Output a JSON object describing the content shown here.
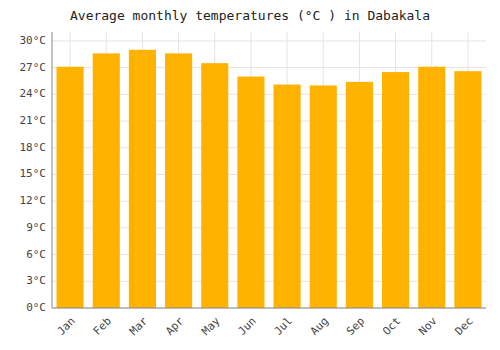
{
  "chart_data": {
    "type": "bar",
    "title": "Average monthly temperatures (°C ) in Dabakala",
    "categories": [
      "Jan",
      "Feb",
      "Mar",
      "Apr",
      "May",
      "Jun",
      "Jul",
      "Aug",
      "Sep",
      "Oct",
      "Nov",
      "Dec"
    ],
    "values": [
      27.1,
      28.6,
      29.0,
      28.6,
      27.5,
      26.0,
      25.1,
      25.0,
      25.4,
      26.5,
      27.1,
      26.6
    ],
    "color": "#FFB300",
    "ylim": [
      0,
      31
    ],
    "yticks": [
      {
        "value": 0,
        "label": "0°C"
      },
      {
        "value": 3,
        "label": "3°C"
      },
      {
        "value": 6,
        "label": "6°C"
      },
      {
        "value": 9,
        "label": "9°C"
      },
      {
        "value": 12,
        "label": "12°C"
      },
      {
        "value": 15,
        "label": "15°C"
      },
      {
        "value": 18,
        "label": "18°C"
      },
      {
        "value": 21,
        "label": "21°C"
      },
      {
        "value": 24,
        "label": "24°C"
      },
      {
        "value": 27,
        "label": "27°C"
      },
      {
        "value": 30,
        "label": "30°C"
      }
    ],
    "grid": true
  }
}
